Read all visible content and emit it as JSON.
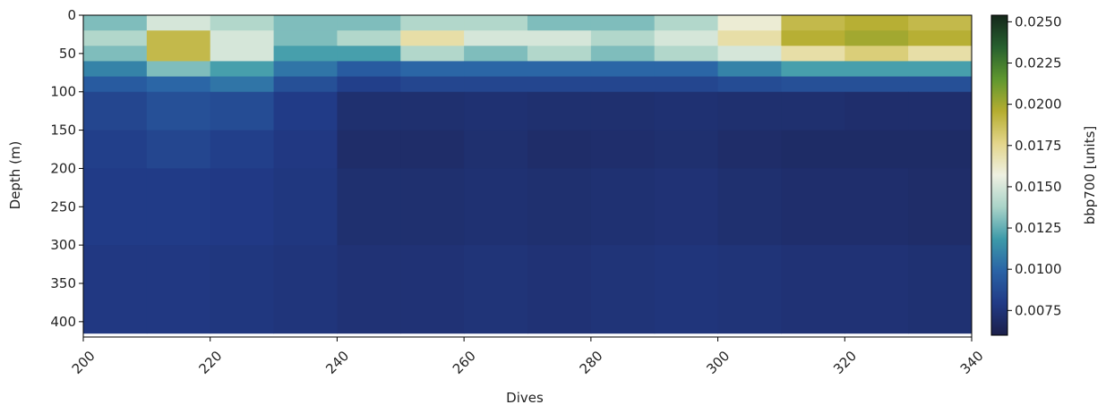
{
  "chart_data": {
    "type": "heatmap",
    "xlabel": "Dives",
    "ylabel": "Depth (m)",
    "colorbar_label": "bbp700 [units]",
    "x_edges": [
      200,
      210,
      220,
      230,
      240,
      250,
      260,
      270,
      280,
      290,
      300,
      310,
      320,
      330,
      340
    ],
    "y_edges": [
      0,
      20,
      40,
      60,
      80,
      100,
      150,
      200,
      300,
      415
    ],
    "values": [
      [
        0.013,
        0.015,
        0.014,
        0.013,
        0.013,
        0.014,
        0.014,
        0.013,
        0.013,
        0.014,
        0.016,
        0.019,
        0.0195,
        0.019
      ],
      [
        0.014,
        0.019,
        0.015,
        0.013,
        0.014,
        0.017,
        0.015,
        0.015,
        0.014,
        0.015,
        0.017,
        0.0195,
        0.02,
        0.0195
      ],
      [
        0.013,
        0.019,
        0.015,
        0.012,
        0.012,
        0.014,
        0.013,
        0.014,
        0.013,
        0.014,
        0.015,
        0.017,
        0.018,
        0.017
      ],
      [
        0.011,
        0.013,
        0.012,
        0.0105,
        0.0095,
        0.01,
        0.01,
        0.01,
        0.01,
        0.01,
        0.011,
        0.012,
        0.012,
        0.012
      ],
      [
        0.0095,
        0.01,
        0.0105,
        0.009,
        0.0082,
        0.0085,
        0.0085,
        0.0085,
        0.0085,
        0.0085,
        0.0088,
        0.009,
        0.009,
        0.009
      ],
      [
        0.0085,
        0.009,
        0.0088,
        0.008,
        0.0072,
        0.0072,
        0.0073,
        0.0072,
        0.0072,
        0.0073,
        0.0072,
        0.0072,
        0.0071,
        0.0071
      ],
      [
        0.0082,
        0.0085,
        0.0082,
        0.0078,
        0.007,
        0.007,
        0.0072,
        0.007,
        0.0071,
        0.0072,
        0.007,
        0.0069,
        0.0069,
        0.0069
      ],
      [
        0.008,
        0.008,
        0.0079,
        0.0077,
        0.0072,
        0.0072,
        0.0073,
        0.0072,
        0.0073,
        0.0074,
        0.0072,
        0.0071,
        0.0071,
        0.007
      ],
      [
        0.0078,
        0.0078,
        0.0077,
        0.0076,
        0.0074,
        0.0074,
        0.0075,
        0.0074,
        0.0075,
        0.0076,
        0.0075,
        0.0074,
        0.0074,
        0.0073
      ]
    ],
    "xlim": [
      200,
      340
    ],
    "xticks": [
      200,
      220,
      240,
      260,
      280,
      300,
      320,
      340
    ],
    "ylim": [
      0,
      420
    ],
    "invert_y": true,
    "yticks": [
      0,
      50,
      100,
      150,
      200,
      250,
      300,
      350,
      400
    ],
    "clim": [
      0.006,
      0.0254
    ],
    "cticks": [
      0.0075,
      {
        "value": 0.01,
        "label": "0.0100"
      },
      0.0125,
      {
        "value": 0.015,
        "label": "0.0150"
      },
      0.0175,
      {
        "value": 0.02,
        "label": "0.0200"
      },
      0.0225,
      {
        "value": 0.025,
        "label": "0.0250"
      }
    ],
    "colormap": [
      "#1c1f4a",
      "#213a86",
      "#2a63a6",
      "#3d9aa9",
      "#a9d3c8",
      "#eef0e2",
      "#e3d58a",
      "#b5ad30",
      "#5f972f",
      "#27602f",
      "#14271a"
    ]
  }
}
